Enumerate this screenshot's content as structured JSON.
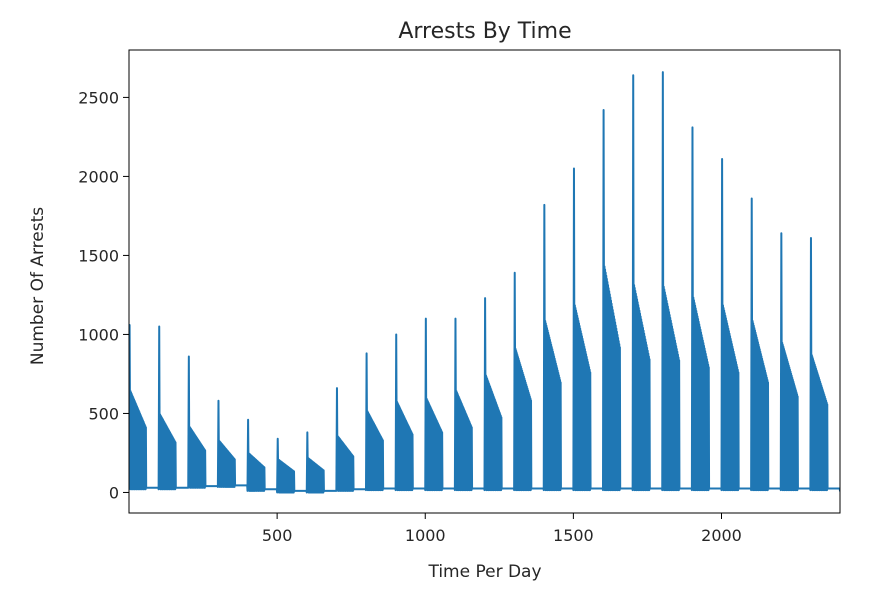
{
  "chart_data": {
    "type": "line",
    "title": "Arrests By Time",
    "xlabel": "Time Per Day",
    "ylabel": "Number Of Arrests",
    "xlim": [
      0,
      2400
    ],
    "ylim": [
      -130,
      2800
    ],
    "xticks": [
      {
        "value": 500,
        "label": "500"
      },
      {
        "value": 1000,
        "label": "1000"
      },
      {
        "value": 1500,
        "label": "1500"
      },
      {
        "value": 2000,
        "label": "2000"
      }
    ],
    "yticks": [
      {
        "value": 0,
        "label": "0"
      },
      {
        "value": 500,
        "label": "500"
      },
      {
        "value": 1000,
        "label": "1000"
      },
      {
        "value": 1500,
        "label": "1500"
      },
      {
        "value": 2000,
        "label": "2000"
      },
      {
        "value": 2500,
        "label": "2500"
      }
    ],
    "grid": false,
    "series": [
      {
        "color": "#1f77b4",
        "hours": [
          {
            "start": 0,
            "peak": 1060,
            "base": 20,
            "high": 650
          },
          {
            "start": 100,
            "peak": 1050,
            "base": 20,
            "high": 500
          },
          {
            "start": 200,
            "peak": 860,
            "base": 30,
            "high": 420
          },
          {
            "start": 300,
            "peak": 580,
            "base": 35,
            "high": 330
          },
          {
            "start": 400,
            "peak": 460,
            "base": 10,
            "high": 250
          },
          {
            "start": 500,
            "peak": 340,
            "base": 0,
            "high": 210
          },
          {
            "start": 600,
            "peak": 380,
            "base": 0,
            "high": 220
          },
          {
            "start": 700,
            "peak": 660,
            "base": 10,
            "high": 360
          },
          {
            "start": 800,
            "peak": 880,
            "base": 15,
            "high": 520
          },
          {
            "start": 900,
            "peak": 1000,
            "base": 15,
            "high": 580
          },
          {
            "start": 1000,
            "peak": 1100,
            "base": 15,
            "high": 600
          },
          {
            "start": 1100,
            "peak": 1100,
            "base": 15,
            "high": 650
          },
          {
            "start": 1200,
            "peak": 1230,
            "base": 15,
            "high": 750
          },
          {
            "start": 1300,
            "peak": 1390,
            "base": 15,
            "high": 920
          },
          {
            "start": 1400,
            "peak": 1820,
            "base": 15,
            "high": 1100
          },
          {
            "start": 1500,
            "peak": 2050,
            "base": 15,
            "high": 1200
          },
          {
            "start": 1600,
            "peak": 2420,
            "base": 15,
            "high": 1450
          },
          {
            "start": 1700,
            "peak": 2640,
            "base": 15,
            "high": 1330
          },
          {
            "start": 1800,
            "peak": 2660,
            "base": 15,
            "high": 1320
          },
          {
            "start": 1900,
            "peak": 2310,
            "base": 15,
            "high": 1250
          },
          {
            "start": 2000,
            "peak": 2110,
            "base": 15,
            "high": 1200
          },
          {
            "start": 2100,
            "peak": 1860,
            "base": 15,
            "high": 1100
          },
          {
            "start": 2200,
            "peak": 1640,
            "base": 15,
            "high": 960
          },
          {
            "start": 2300,
            "peak": 1610,
            "base": 15,
            "high": 880
          }
        ],
        "end_point": {
          "x": 2400,
          "y": 10
        }
      }
    ]
  }
}
